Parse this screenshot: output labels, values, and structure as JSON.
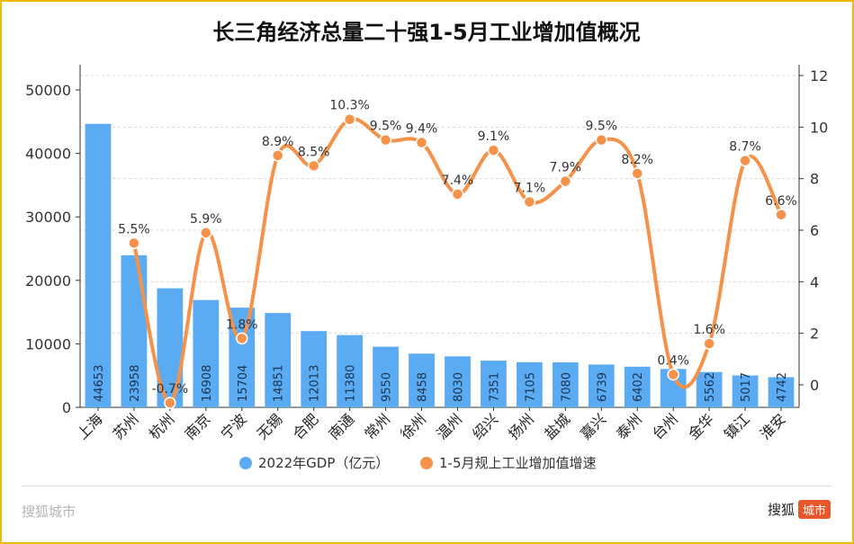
{
  "chart_data": {
    "type": "bar+line",
    "title": "长三角经济总量二十强1-5月工业增加值概况",
    "categories": [
      "上海",
      "苏州",
      "杭州",
      "南京",
      "宁波",
      "无锡",
      "合肥",
      "南通",
      "常州",
      "徐州",
      "温州",
      "绍兴",
      "扬州",
      "盐城",
      "嘉兴",
      "泰州",
      "台州",
      "金华",
      "镇江",
      "淮安"
    ],
    "series": [
      {
        "name": "2022年GDP（亿元）",
        "type": "bar",
        "axis": "left",
        "color": "#5aabf2",
        "values": [
          44653,
          23958,
          18753,
          16908,
          15704,
          14851,
          12013,
          11380,
          9550,
          8458,
          8030,
          7351,
          7105,
          7080,
          6739,
          6402,
          6041,
          5562,
          5017,
          4742
        ],
        "data_labels": [
          "44653",
          "23958",
          "",
          "16908",
          "15704",
          "14851",
          "12013",
          "11380",
          "9550",
          "8458",
          "8030",
          "7351",
          "7105",
          "7080",
          "6739",
          "6402",
          "",
          "5562",
          "5017",
          "4742"
        ]
      },
      {
        "name": "1-5月规上工业增加值增速",
        "type": "line",
        "axis": "right",
        "color": "#f5924a",
        "values": [
          null,
          5.5,
          -0.7,
          5.9,
          1.8,
          8.9,
          8.5,
          10.3,
          9.5,
          9.4,
          7.4,
          9.1,
          7.1,
          7.9,
          9.5,
          8.2,
          0.4,
          1.6,
          8.7,
          6.6
        ],
        "data_labels": [
          "",
          "5.5%",
          "-0.7%",
          "5.9%",
          "1.8%",
          "8.9%",
          "8.5%",
          "10.3%",
          "9.5%",
          "9.4%",
          "7.4%",
          "9.1%",
          "7.1%",
          "7.9%",
          "9.5%",
          "8.2%",
          "0.4%",
          "1.6%",
          "8.7%",
          "6.6%"
        ]
      }
    ],
    "left_axis": {
      "min": 0,
      "max": 50000,
      "ticks": [
        "0",
        "10000",
        "20000",
        "30000",
        "40000",
        "50000"
      ]
    },
    "right_axis": {
      "min": -1,
      "max": 12,
      "ticks": [
        "0",
        "2",
        "4",
        "6",
        "8",
        "10",
        "12"
      ]
    },
    "grid": true,
    "legend_position": "bottom"
  },
  "footer": {
    "left_text": "搜狐城市",
    "right_text": "搜狐",
    "right_badge": "城市"
  }
}
